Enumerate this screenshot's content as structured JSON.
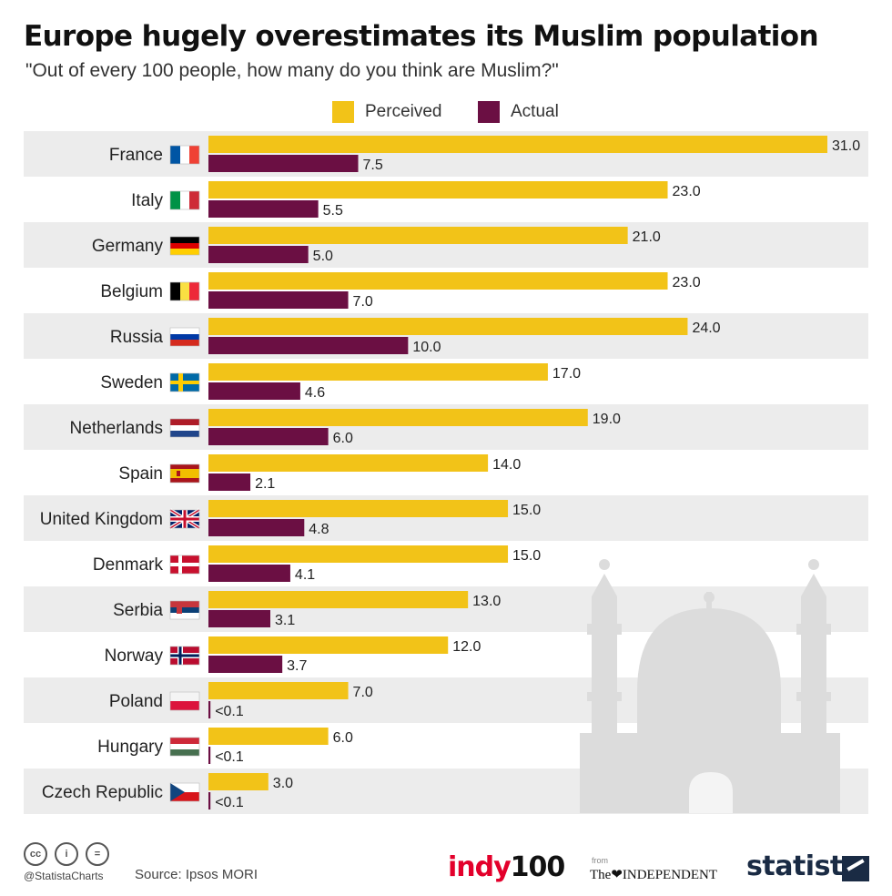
{
  "title": "Europe hugely overestimates its Muslim population",
  "subtitle": "\"Out of every 100 people, how many do you think are Muslim?\"",
  "footer": {
    "handle": "@StatistaCharts",
    "source": "Source: Ipsos MORI",
    "brand_indy_a": "indy",
    "brand_indy_b": "100",
    "brand_from": "from",
    "brand_independent": "The❤INDEPENDENT",
    "brand_statista": "statista",
    "cc_labels": [
      "cc",
      "i",
      "="
    ]
  },
  "colors": {
    "perceived": "#f2c318",
    "actual": "#6b0f43",
    "row_band": "#ececec",
    "mosque": "#dcdcdc"
  },
  "chart_data": {
    "type": "bar",
    "orientation": "horizontal",
    "grid": false,
    "legend_position": "top-center",
    "xlim": [
      0,
      31
    ],
    "categories": [
      "France",
      "Italy",
      "Germany",
      "Belgium",
      "Russia",
      "Sweden",
      "Netherlands",
      "Spain",
      "United Kingdom",
      "Denmark",
      "Serbia",
      "Norway",
      "Poland",
      "Hungary",
      "Czech Republic"
    ],
    "series": [
      {
        "name": "Perceived",
        "values": [
          31.0,
          23.0,
          21.0,
          23.0,
          24.0,
          17.0,
          19.0,
          14.0,
          15.0,
          15.0,
          13.0,
          12.0,
          7.0,
          6.0,
          3.0
        ],
        "labels": [
          "31.0",
          "23.0",
          "21.0",
          "23.0",
          "24.0",
          "17.0",
          "19.0",
          "14.0",
          "15.0",
          "15.0",
          "13.0",
          "12.0",
          "7.0",
          "6.0",
          "3.0"
        ]
      },
      {
        "name": "Actual",
        "values": [
          7.5,
          5.5,
          5.0,
          7.0,
          10.0,
          4.6,
          6.0,
          2.1,
          4.8,
          4.1,
          3.1,
          3.7,
          0.1,
          0.1,
          0.1
        ],
        "labels": [
          "7.5",
          "5.5",
          "5.0",
          "7.0",
          "10.0",
          "4.6",
          "6.0",
          "2.1",
          "4.8",
          "4.1",
          "3.1",
          "3.7",
          "<0.1",
          "<0.1",
          "<0.1"
        ]
      }
    ],
    "flag_icons": [
      "france-flag-icon",
      "italy-flag-icon",
      "germany-flag-icon",
      "belgium-flag-icon",
      "russia-flag-icon",
      "sweden-flag-icon",
      "netherlands-flag-icon",
      "spain-flag-icon",
      "united-kingdom-flag-icon",
      "denmark-flag-icon",
      "serbia-flag-icon",
      "norway-flag-icon",
      "poland-flag-icon",
      "hungary-flag-icon",
      "czech-republic-flag-icon"
    ]
  }
}
